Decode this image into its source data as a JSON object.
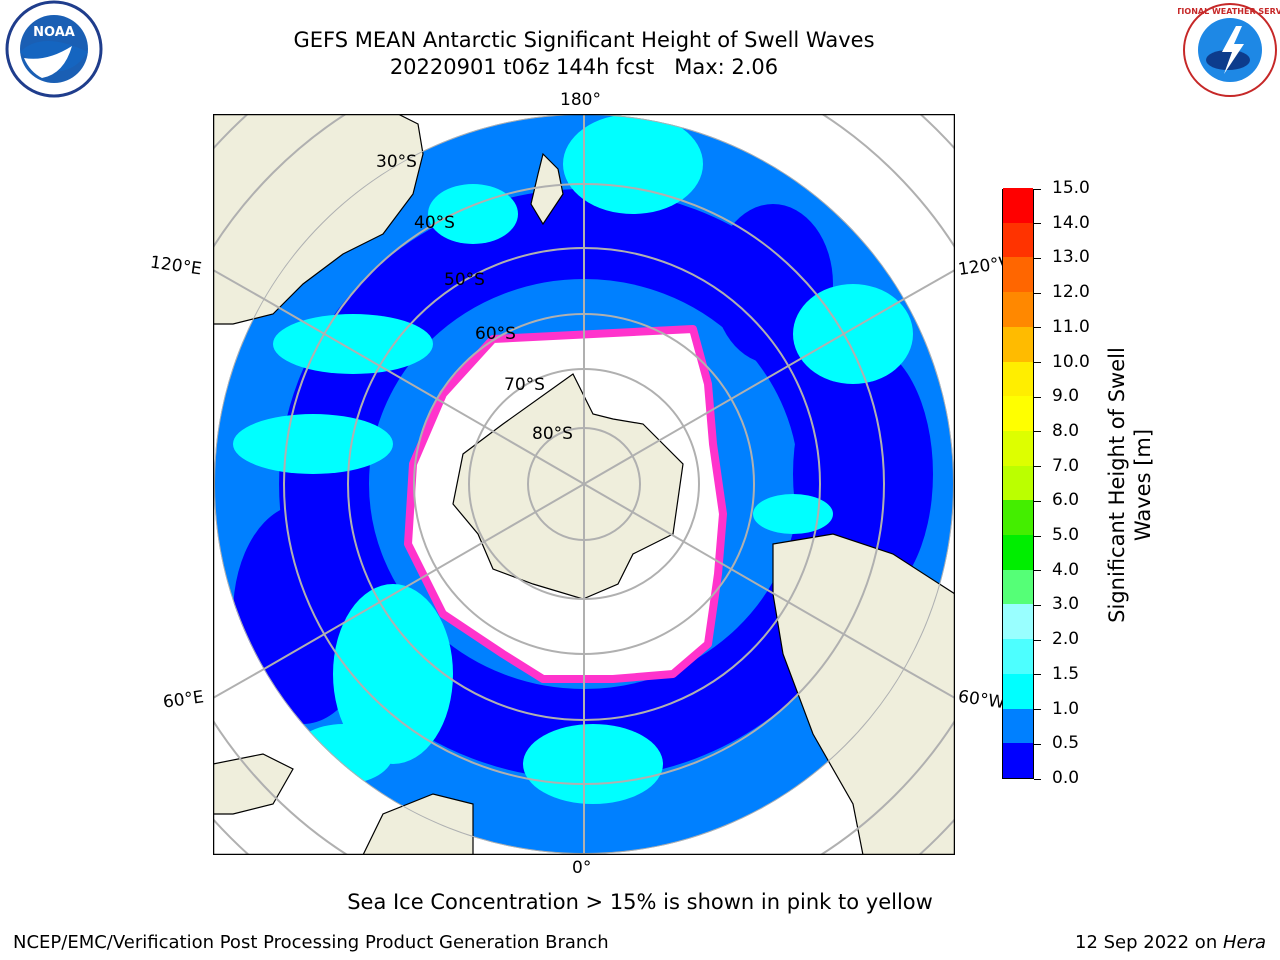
{
  "title": {
    "line1": "GEFS MEAN Antarctic Significant Height of Swell Waves",
    "line2": "20220901 t06z 144h fcst   Max: 2.06"
  },
  "logos": {
    "left": {
      "text": "NOAA",
      "icon": "noaa-logo-icon"
    },
    "right": {
      "text": "NATIONAL WEATHER SERVICE",
      "icon": "nws-logo-icon"
    }
  },
  "map": {
    "longitude_labels": {
      "top": "180°",
      "bottom": "0°",
      "upper_left": "120°E",
      "upper_right": "120°W",
      "lower_left": "60°E",
      "lower_right": "60°W"
    },
    "latitude_labels": [
      "30°S",
      "40°S",
      "50°S",
      "60°S",
      "70°S",
      "80°S"
    ],
    "colors": {
      "land": "#efeedc",
      "ice": "#ffffff",
      "grid": "#b0b0b0"
    }
  },
  "colorbar": {
    "label": "Significant Height of Swell Waves [m]",
    "ticks": [
      "0.0",
      "0.5",
      "1.0",
      "1.5",
      "2.0",
      "3.0",
      "4.0",
      "5.0",
      "6.0",
      "7.0",
      "8.0",
      "9.0",
      "10.0",
      "11.0",
      "12.0",
      "13.0",
      "14.0",
      "15.0"
    ],
    "colors": [
      "#0000ff",
      "#0080ff",
      "#00ffff",
      "#4dffff",
      "#99ffff",
      "#55ff77",
      "#00ee00",
      "#44ee00",
      "#bbff00",
      "#ddff00",
      "#ffff00",
      "#ffee00",
      "#ffbb00",
      "#ff8800",
      "#ff6600",
      "#ff3300",
      "#ff0000"
    ]
  },
  "caption": "Sea Ice Concentration > 15% is shown in pink to yellow",
  "footer": {
    "left": "NCEP/EMC/Verification Post Processing Product Generation Branch",
    "right_date": "12 Sep 2022 on ",
    "right_host": "Hera"
  }
}
